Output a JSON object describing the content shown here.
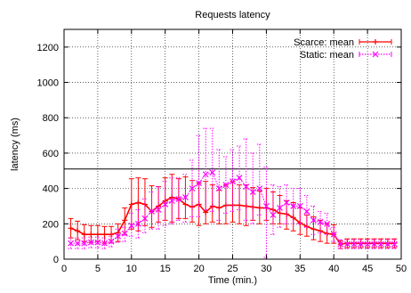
{
  "chart_data": {
    "type": "line",
    "title": "Requests latency",
    "xlabel": "Time (min.)",
    "ylabel": "latency (ms)",
    "xlim": [
      0,
      50
    ],
    "ylim": [
      0,
      1300
    ],
    "xticks": [
      0,
      5,
      10,
      15,
      20,
      25,
      30,
      35,
      40,
      45,
      50
    ],
    "yticks": [
      0,
      200,
      400,
      600,
      800,
      1000,
      1200
    ],
    "grid": true,
    "legend_position": "top-right",
    "reference_line": 510,
    "series": [
      {
        "name": "Scarce: mean",
        "color": "#ff0000",
        "marker": "plus",
        "x": [
          1,
          2,
          3,
          4,
          5,
          6,
          7,
          8,
          9,
          10,
          11,
          12,
          13,
          14,
          15,
          16,
          17,
          18,
          19,
          20,
          21,
          22,
          23,
          24,
          25,
          26,
          27,
          28,
          29,
          30,
          31,
          32,
          33,
          34,
          35,
          36,
          37,
          38,
          39,
          40,
          41,
          42,
          43,
          44,
          45,
          46,
          47,
          48,
          49
        ],
        "y": [
          175,
          160,
          140,
          140,
          140,
          140,
          140,
          150,
          220,
          310,
          320,
          310,
          270,
          300,
          330,
          350,
          340,
          310,
          295,
          310,
          265,
          300,
          290,
          305,
          305,
          305,
          300,
          295,
          290,
          290,
          280,
          260,
          255,
          235,
          205,
          185,
          170,
          160,
          145,
          140,
          85,
          90,
          90,
          90,
          90,
          90,
          90,
          90,
          90
        ],
        "err_low": [
          120,
          110,
          100,
          95,
          100,
          90,
          95,
          100,
          140,
          170,
          160,
          190,
          180,
          210,
          220,
          210,
          230,
          230,
          210,
          190,
          200,
          210,
          200,
          200,
          210,
          200,
          190,
          220,
          200,
          220,
          200,
          200,
          170,
          160,
          140,
          130,
          110,
          100,
          90,
          90,
          60,
          65,
          65,
          65,
          65,
          65,
          65,
          65,
          65
        ],
        "err_high": [
          230,
          215,
          195,
          190,
          190,
          185,
          185,
          200,
          290,
          455,
          460,
          455,
          415,
          410,
          460,
          480,
          455,
          465,
          445,
          430,
          440,
          420,
          390,
          420,
          440,
          420,
          420,
          405,
          385,
          400,
          380,
          360,
          330,
          320,
          290,
          250,
          240,
          220,
          200,
          195,
          105,
          115,
          115,
          115,
          115,
          115,
          115,
          115,
          115
        ]
      },
      {
        "name": "Static: mean",
        "color": "#ff00ff",
        "marker": "cross",
        "x": [
          1,
          2,
          3,
          4,
          5,
          6,
          7,
          8,
          9,
          10,
          11,
          12,
          13,
          14,
          15,
          16,
          17,
          18,
          19,
          20,
          21,
          22,
          23,
          24,
          25,
          26,
          27,
          28,
          29,
          30,
          31,
          32,
          33,
          34,
          35,
          36,
          37,
          38,
          39,
          40,
          41,
          42,
          43,
          44,
          45,
          46,
          47,
          48,
          49
        ],
        "y": [
          90,
          90,
          90,
          95,
          95,
          90,
          100,
          130,
          145,
          190,
          200,
          230,
          270,
          280,
          310,
          330,
          340,
          350,
          400,
          430,
          480,
          490,
          400,
          420,
          440,
          460,
          410,
          380,
          400,
          300,
          250,
          290,
          320,
          300,
          300,
          270,
          220,
          210,
          200,
          140,
          85,
          85,
          85,
          85,
          85,
          85,
          85,
          85,
          85
        ],
        "err_low": [
          60,
          60,
          60,
          65,
          65,
          60,
          70,
          95,
          100,
          130,
          120,
          150,
          170,
          170,
          190,
          200,
          220,
          210,
          240,
          240,
          280,
          270,
          220,
          260,
          270,
          280,
          220,
          200,
          250,
          10,
          140,
          180,
          200,
          200,
          200,
          180,
          140,
          150,
          140,
          100,
          60,
          60,
          60,
          60,
          60,
          60,
          60,
          60,
          60
        ],
        "err_high": [
          120,
          120,
          120,
          125,
          125,
          120,
          130,
          170,
          180,
          260,
          280,
          340,
          380,
          410,
          440,
          460,
          460,
          480,
          560,
          700,
          740,
          740,
          620,
          580,
          620,
          640,
          680,
          600,
          650,
          520,
          420,
          410,
          420,
          400,
          400,
          360,
          300,
          270,
          260,
          180,
          110,
          110,
          110,
          110,
          110,
          110,
          110,
          110,
          110
        ]
      }
    ]
  }
}
